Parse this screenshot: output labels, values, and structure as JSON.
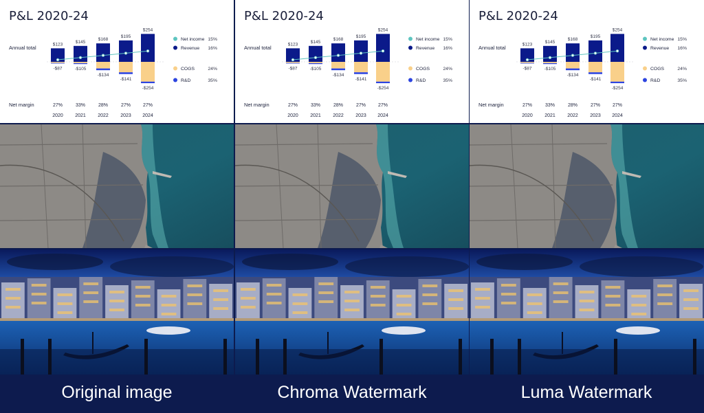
{
  "captions": [
    "Original image",
    "Chroma Watermark",
    "Luma Watermark"
  ],
  "panels": [
    {
      "title": "P&L 2020-24"
    },
    {
      "title": "P&L 2020-24"
    },
    {
      "title": "P&L 2020-24"
    }
  ],
  "chart_data": {
    "type": "bar",
    "title": "P&L 2020-24",
    "categories": [
      "2020",
      "2021",
      "2022",
      "2023",
      "2024"
    ],
    "row_labels": {
      "annual_total": "Annual total",
      "net_margin": "Net margin"
    },
    "totals_labels": [
      "$123",
      "$145",
      "$168",
      "$195",
      "$254"
    ],
    "negative_labels": [
      "-$87",
      "-$105",
      "-$134",
      "-$141",
      "-$254"
    ],
    "net_margin_labels": [
      "27%",
      "33%",
      "28%",
      "27%",
      "27%"
    ],
    "series": [
      {
        "name": "Revenue",
        "values": [
          123,
          145,
          168,
          195,
          254
        ],
        "color": "#0b1a8a"
      },
      {
        "name": "COGS",
        "values": [
          -10,
          -12,
          -60,
          -95,
          -180
        ],
        "color": "#f9d08a"
      },
      {
        "name": "R&D",
        "values": [
          -5,
          -8,
          -16,
          -16,
          -14
        ],
        "color": "#2d45e0"
      },
      {
        "name": "Net income",
        "values": [
          27,
          33,
          28,
          27,
          27
        ],
        "color": "#5ec5c0"
      }
    ],
    "legend": [
      {
        "name": "Net income",
        "pct": "15%",
        "color": "#5ec5c0"
      },
      {
        "name": "Revenue",
        "pct": "16%",
        "color": "#0b1a8a"
      },
      {
        "name": "COGS",
        "pct": "24%",
        "color": "#f9d08a"
      },
      {
        "name": "R&D",
        "pct": "35%",
        "color": "#2d45e0"
      }
    ],
    "legend_placement": "right"
  }
}
